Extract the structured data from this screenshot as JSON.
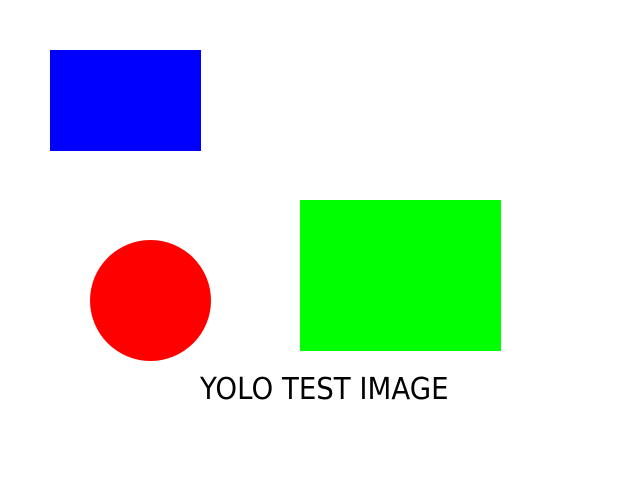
{
  "caption": "YOLO TEST IMAGE",
  "colors": {
    "background": "#ffffff",
    "blue_rectangle": "#0000ff",
    "green_rectangle": "#00ff00",
    "red_circle": "#ff0000",
    "caption_text": "#000000"
  }
}
